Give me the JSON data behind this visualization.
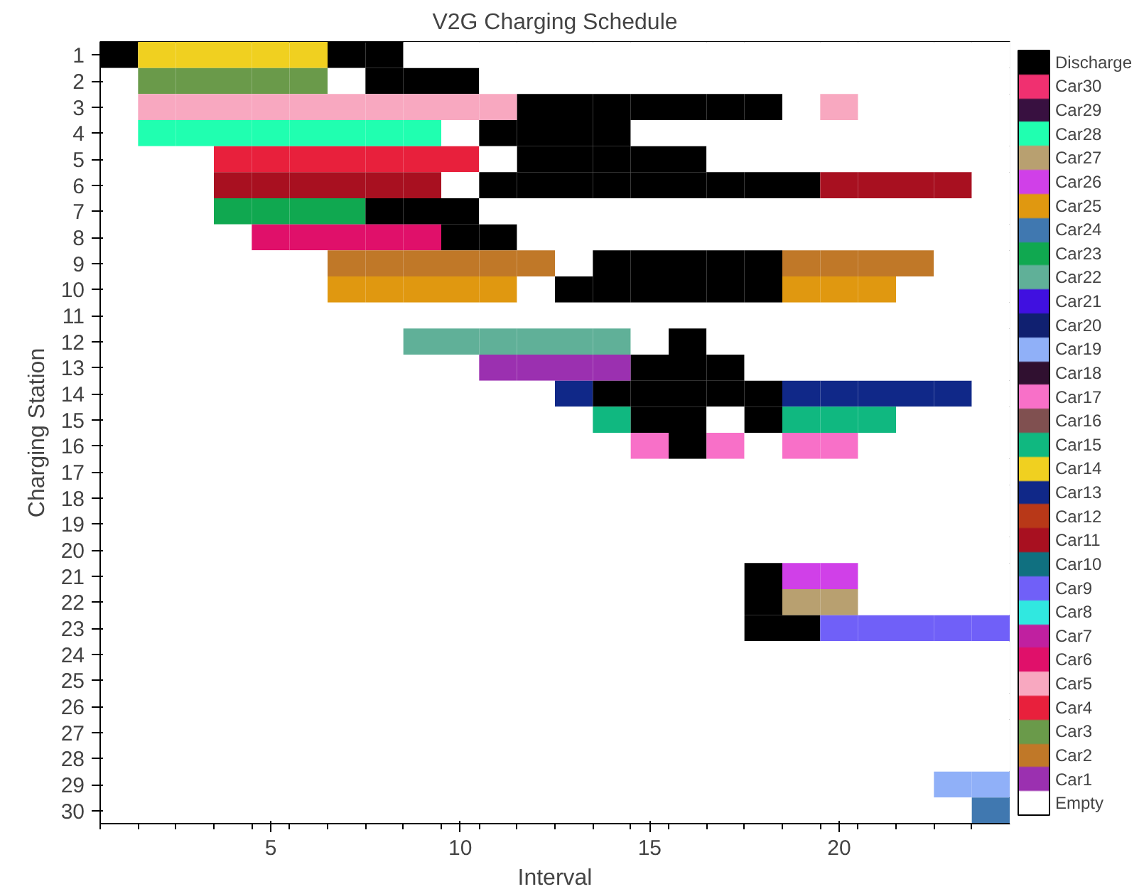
{
  "chart_data": {
    "type": "heatmap",
    "title": "V2G Charging Schedule",
    "xlabel": "Interval",
    "ylabel": "Charging Station",
    "x": [
      1,
      2,
      3,
      4,
      5,
      6,
      7,
      8,
      9,
      10,
      11,
      12,
      13,
      14,
      15,
      16,
      17,
      18,
      19,
      20,
      21,
      22,
      23,
      24
    ],
    "xlim": [
      0.5,
      24.5
    ],
    "xticks": [
      5,
      10,
      15,
      20
    ],
    "y_categories": [
      "1",
      "2",
      "3",
      "4",
      "5",
      "6",
      "7",
      "8",
      "9",
      "10",
      "11",
      "12",
      "13",
      "14",
      "15",
      "16",
      "17",
      "18",
      "19",
      "20",
      "21",
      "22",
      "23",
      "24",
      "25",
      "26",
      "27",
      "28",
      "29",
      "30"
    ],
    "cells": [
      [
        31,
        14,
        14,
        14,
        14,
        14,
        31,
        31,
        0,
        0,
        0,
        0,
        0,
        0,
        0,
        0,
        0,
        0,
        0,
        0,
        0,
        0,
        0,
        0
      ],
      [
        0,
        3,
        3,
        3,
        3,
        3,
        0,
        31,
        31,
        31,
        0,
        0,
        0,
        0,
        0,
        0,
        0,
        0,
        0,
        0,
        0,
        0,
        0,
        0
      ],
      [
        0,
        5,
        5,
        5,
        5,
        5,
        5,
        5,
        5,
        5,
        5,
        31,
        31,
        31,
        31,
        31,
        31,
        31,
        0,
        5,
        0,
        0,
        0,
        0
      ],
      [
        0,
        28,
        28,
        28,
        28,
        28,
        28,
        28,
        28,
        0,
        31,
        31,
        31,
        31,
        0,
        0,
        0,
        0,
        0,
        0,
        0,
        0,
        0,
        0
      ],
      [
        0,
        0,
        0,
        4,
        4,
        4,
        4,
        4,
        4,
        4,
        0,
        31,
        31,
        31,
        31,
        31,
        0,
        0,
        0,
        0,
        0,
        0,
        0,
        0
      ],
      [
        0,
        0,
        0,
        11,
        11,
        11,
        11,
        11,
        11,
        0,
        31,
        31,
        31,
        31,
        31,
        31,
        31,
        31,
        31,
        11,
        11,
        11,
        11,
        0
      ],
      [
        0,
        0,
        0,
        23,
        23,
        23,
        23,
        31,
        31,
        31,
        0,
        0,
        0,
        0,
        0,
        0,
        0,
        0,
        0,
        0,
        0,
        0,
        0,
        0
      ],
      [
        0,
        0,
        0,
        0,
        6,
        6,
        6,
        6,
        6,
        31,
        31,
        0,
        0,
        0,
        0,
        0,
        0,
        0,
        0,
        0,
        0,
        0,
        0,
        0
      ],
      [
        0,
        0,
        0,
        0,
        0,
        0,
        2,
        2,
        2,
        2,
        2,
        2,
        0,
        31,
        31,
        31,
        31,
        31,
        2,
        2,
        2,
        2,
        0,
        0
      ],
      [
        0,
        0,
        0,
        0,
        0,
        0,
        25,
        25,
        25,
        25,
        25,
        0,
        31,
        31,
        31,
        31,
        31,
        31,
        25,
        25,
        25,
        0,
        0,
        0
      ],
      [
        0,
        0,
        0,
        0,
        0,
        0,
        0,
        0,
        0,
        0,
        0,
        0,
        0,
        0,
        0,
        0,
        0,
        0,
        0,
        0,
        0,
        0,
        0,
        0
      ],
      [
        0,
        0,
        0,
        0,
        0,
        0,
        0,
        0,
        22,
        22,
        22,
        22,
        22,
        22,
        0,
        31,
        0,
        0,
        0,
        0,
        0,
        0,
        0,
        0
      ],
      [
        0,
        0,
        0,
        0,
        0,
        0,
        0,
        0,
        0,
        0,
        1,
        1,
        1,
        1,
        31,
        31,
        31,
        0,
        0,
        0,
        0,
        0,
        0,
        0
      ],
      [
        0,
        0,
        0,
        0,
        0,
        0,
        0,
        0,
        0,
        0,
        0,
        0,
        13,
        31,
        31,
        31,
        31,
        31,
        13,
        13,
        13,
        13,
        13,
        0
      ],
      [
        0,
        0,
        0,
        0,
        0,
        0,
        0,
        0,
        0,
        0,
        0,
        0,
        0,
        15,
        31,
        31,
        0,
        31,
        15,
        15,
        15,
        0,
        0,
        0
      ],
      [
        0,
        0,
        0,
        0,
        0,
        0,
        0,
        0,
        0,
        0,
        0,
        0,
        0,
        0,
        17,
        31,
        17,
        0,
        17,
        17,
        0,
        0,
        0,
        0
      ],
      [
        0,
        0,
        0,
        0,
        0,
        0,
        0,
        0,
        0,
        0,
        0,
        0,
        0,
        0,
        0,
        0,
        0,
        0,
        0,
        0,
        0,
        0,
        0,
        0
      ],
      [
        0,
        0,
        0,
        0,
        0,
        0,
        0,
        0,
        0,
        0,
        0,
        0,
        0,
        0,
        0,
        0,
        0,
        0,
        0,
        0,
        0,
        0,
        0,
        0
      ],
      [
        0,
        0,
        0,
        0,
        0,
        0,
        0,
        0,
        0,
        0,
        0,
        0,
        0,
        0,
        0,
        0,
        0,
        0,
        0,
        0,
        0,
        0,
        0,
        0
      ],
      [
        0,
        0,
        0,
        0,
        0,
        0,
        0,
        0,
        0,
        0,
        0,
        0,
        0,
        0,
        0,
        0,
        0,
        0,
        0,
        0,
        0,
        0,
        0,
        0
      ],
      [
        0,
        0,
        0,
        0,
        0,
        0,
        0,
        0,
        0,
        0,
        0,
        0,
        0,
        0,
        0,
        0,
        0,
        31,
        26,
        26,
        0,
        0,
        0,
        0
      ],
      [
        0,
        0,
        0,
        0,
        0,
        0,
        0,
        0,
        0,
        0,
        0,
        0,
        0,
        0,
        0,
        0,
        0,
        31,
        27,
        27,
        0,
        0,
        0,
        0
      ],
      [
        0,
        0,
        0,
        0,
        0,
        0,
        0,
        0,
        0,
        0,
        0,
        0,
        0,
        0,
        0,
        0,
        0,
        31,
        31,
        9,
        9,
        9,
        9,
        9
      ],
      [
        0,
        0,
        0,
        0,
        0,
        0,
        0,
        0,
        0,
        0,
        0,
        0,
        0,
        0,
        0,
        0,
        0,
        0,
        0,
        0,
        0,
        0,
        0,
        0
      ],
      [
        0,
        0,
        0,
        0,
        0,
        0,
        0,
        0,
        0,
        0,
        0,
        0,
        0,
        0,
        0,
        0,
        0,
        0,
        0,
        0,
        0,
        0,
        0,
        0
      ],
      [
        0,
        0,
        0,
        0,
        0,
        0,
        0,
        0,
        0,
        0,
        0,
        0,
        0,
        0,
        0,
        0,
        0,
        0,
        0,
        0,
        0,
        0,
        0,
        0
      ],
      [
        0,
        0,
        0,
        0,
        0,
        0,
        0,
        0,
        0,
        0,
        0,
        0,
        0,
        0,
        0,
        0,
        0,
        0,
        0,
        0,
        0,
        0,
        0,
        0
      ],
      [
        0,
        0,
        0,
        0,
        0,
        0,
        0,
        0,
        0,
        0,
        0,
        0,
        0,
        0,
        0,
        0,
        0,
        0,
        0,
        0,
        0,
        0,
        0,
        0
      ],
      [
        0,
        0,
        0,
        0,
        0,
        0,
        0,
        0,
        0,
        0,
        0,
        0,
        0,
        0,
        0,
        0,
        0,
        0,
        0,
        0,
        0,
        0,
        19,
        19
      ],
      [
        0,
        0,
        0,
        0,
        0,
        0,
        0,
        0,
        0,
        0,
        0,
        0,
        0,
        0,
        0,
        0,
        0,
        0,
        0,
        0,
        0,
        0,
        0,
        24
      ]
    ],
    "clim": [
      -0.5,
      31.5
    ],
    "cticks": [
      {
        "value": 0,
        "label": "Empty"
      },
      {
        "value": 1,
        "label": "Car1"
      },
      {
        "value": 2,
        "label": "Car2"
      },
      {
        "value": 3,
        "label": "Car3"
      },
      {
        "value": 4,
        "label": "Car4"
      },
      {
        "value": 5,
        "label": "Car5"
      },
      {
        "value": 6,
        "label": "Car6"
      },
      {
        "value": 7,
        "label": "Car7"
      },
      {
        "value": 8,
        "label": "Car8"
      },
      {
        "value": 9,
        "label": "Car9"
      },
      {
        "value": 10,
        "label": "Car10"
      },
      {
        "value": 11,
        "label": "Car11"
      },
      {
        "value": 12,
        "label": "Car12"
      },
      {
        "value": 13,
        "label": "Car13"
      },
      {
        "value": 14,
        "label": "Car14"
      },
      {
        "value": 15,
        "label": "Car15"
      },
      {
        "value": 16,
        "label": "Car16"
      },
      {
        "value": 17,
        "label": "Car17"
      },
      {
        "value": 18,
        "label": "Car18"
      },
      {
        "value": 19,
        "label": "Car19"
      },
      {
        "value": 20,
        "label": "Car20"
      },
      {
        "value": 21,
        "label": "Car21"
      },
      {
        "value": 22,
        "label": "Car22"
      },
      {
        "value": 23,
        "label": "Car23"
      },
      {
        "value": 24,
        "label": "Car24"
      },
      {
        "value": 25,
        "label": "Car25"
      },
      {
        "value": 26,
        "label": "Car26"
      },
      {
        "value": 27,
        "label": "Car27"
      },
      {
        "value": 28,
        "label": "Car28"
      },
      {
        "value": 29,
        "label": "Car29"
      },
      {
        "value": 30,
        "label": "Car30"
      },
      {
        "value": 31,
        "label": "Discharge"
      }
    ],
    "colors": [
      "#ffffff",
      "#9b30b0",
      "#c07828",
      "#6a9a4a",
      "#e8203c",
      "#f8a8c0",
      "#e0106a",
      "#c020a0",
      "#30e8e0",
      "#7060f8",
      "#107080",
      "#a81020",
      "#b83818",
      "#102888",
      "#f0d020",
      "#10b880",
      "#805050",
      "#f870c8",
      "#301030",
      "#90b0f8",
      "#102070",
      "#4010e0",
      "#60b098",
      "#10a850",
      "#4078b0",
      "#e09810",
      "#d040e8",
      "#b8a070",
      "#20ffb0",
      "#381040",
      "#f03070",
      "#000000"
    ]
  }
}
